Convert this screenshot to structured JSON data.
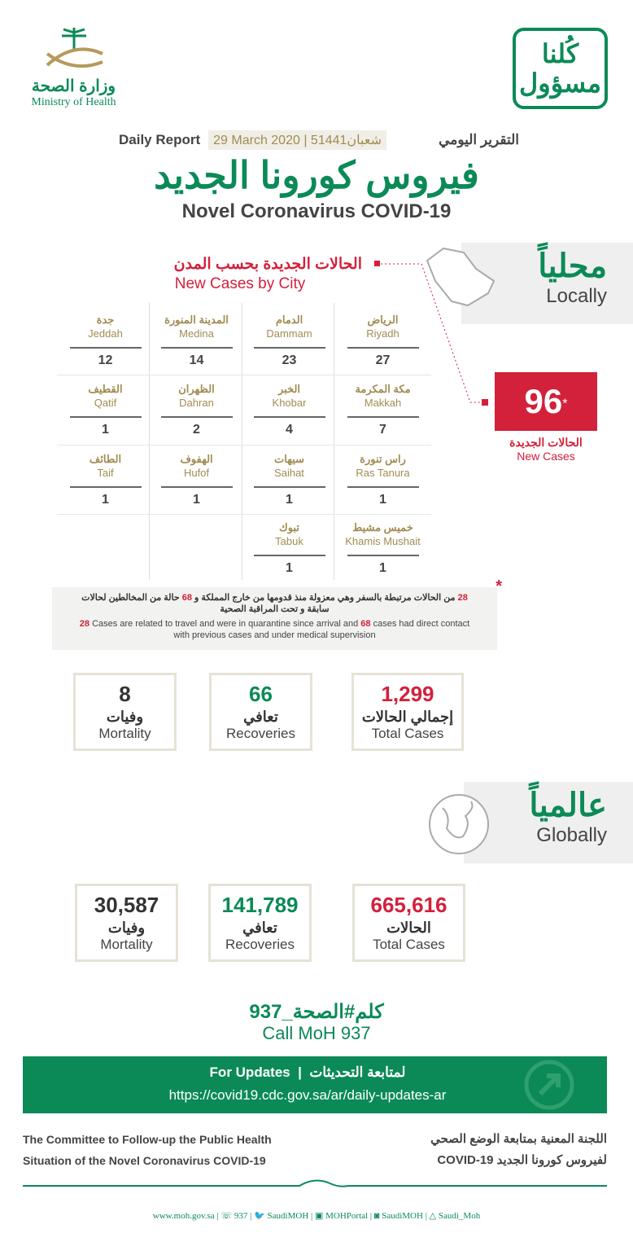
{
  "logo": {
    "ar": "وزارة الصحة",
    "en": "Ministry of Health"
  },
  "campaign": {
    "line1": "كُلنا",
    "line2": "مسؤول"
  },
  "header": {
    "report_ar": "التقرير اليومي",
    "hijri": "5شعبان1441",
    "date": "29 March 2020",
    "report_en": "Daily Report",
    "title_ar": "فيروس كورونا الجديد",
    "title_en": "Novel Coronavirus COVID-19"
  },
  "local": {
    "label_ar": "محلياً",
    "label_en": "Locally",
    "section_ar": "الحالات الجديدة بحسب المدن",
    "section_en": "New Cases by City",
    "new_cases": {
      "value": "96",
      "mark": "*",
      "label_ar": "الحالات الجديدة",
      "label_en": "New Cases"
    },
    "cities": [
      {
        "ar": "الرياض",
        "en": "Riyadh",
        "n": "27"
      },
      {
        "ar": "الدمام",
        "en": "Dammam",
        "n": "23"
      },
      {
        "ar": "المدينة المنورة",
        "en": "Medina",
        "n": "14"
      },
      {
        "ar": "جدة",
        "en": "Jeddah",
        "n": "12"
      },
      {
        "ar": "مكة المكرمة",
        "en": "Makkah",
        "n": "7"
      },
      {
        "ar": "الخبر",
        "en": "Khobar",
        "n": "4"
      },
      {
        "ar": "الظهران",
        "en": "Dahran",
        "n": "2"
      },
      {
        "ar": "القطيف",
        "en": "Qatif",
        "n": "1"
      },
      {
        "ar": "راس تنورة",
        "en": "Ras Tanura",
        "n": "1"
      },
      {
        "ar": "سيهات",
        "en": "Saihat",
        "n": "1"
      },
      {
        "ar": "الهفوف",
        "en": "Hufof",
        "n": "1"
      },
      {
        "ar": "الطائف",
        "en": "Taif",
        "n": "1"
      },
      {
        "ar": "خميس مشيط",
        "en": "Khamis Mushait",
        "n": "1"
      },
      {
        "ar": "تبوك",
        "en": "Tabuk",
        "n": "1"
      }
    ],
    "note": {
      "mark": "*",
      "n1": "28",
      "n2": "68",
      "ar_a": " من الحالات مرتبطة بالسفر وهي معزولة منذ قدومها من خارج المملكة و ",
      "ar_b": " حالة من المخالطين لحالات سابقة و تحت المراقبة الصحية",
      "en_a": " Cases are related to travel and were in quarantine since arrival and ",
      "en_b": " cases had direct contact with previous cases and under medical supervision"
    },
    "stats": [
      {
        "value": "1,299",
        "ar": "إجمالي الحالات",
        "en": "Total Cases",
        "color": "#d3203b"
      },
      {
        "value": "66",
        "ar": "تعافي",
        "en": "Recoveries",
        "color": "#0b8a57"
      },
      {
        "value": "8",
        "ar": "وفيات",
        "en": "Mortality",
        "color": "#333333"
      }
    ]
  },
  "global": {
    "label_ar": "عالمياً",
    "label_en": "Globally",
    "stats": [
      {
        "value": "665,616",
        "ar": "الحالات",
        "en": "Total Cases",
        "color": "#d3203b"
      },
      {
        "value": "141,789",
        "ar": "تعافي",
        "en": "Recoveries",
        "color": "#0b8a57"
      },
      {
        "value": "30,587",
        "ar": "وفيات",
        "en": "Mortality",
        "color": "#333333"
      }
    ]
  },
  "call": {
    "ar": "كلم#الصحة_937",
    "en": "Call MoH 937"
  },
  "updates": {
    "en": "For Updates",
    "ar": "لمتابعة التحديثات",
    "url": "https://covid19.cdc.gov.sa/ar/daily-updates-ar"
  },
  "committee": {
    "en1": "The Committee to Follow-up the Public Health",
    "en2": "Situation of the Novel Coronavirus COVID-19",
    "ar1": "اللجنة المعنية بمتابعة الوضع الصحي",
    "ar2": "لفيروس كورونا الجديد COVID-19"
  },
  "footer": [
    "www.moh.gov.sa",
    "937",
    "SaudiMOH",
    "MOHPortal",
    "SaudiMOH",
    "Saudi_Moh"
  ]
}
